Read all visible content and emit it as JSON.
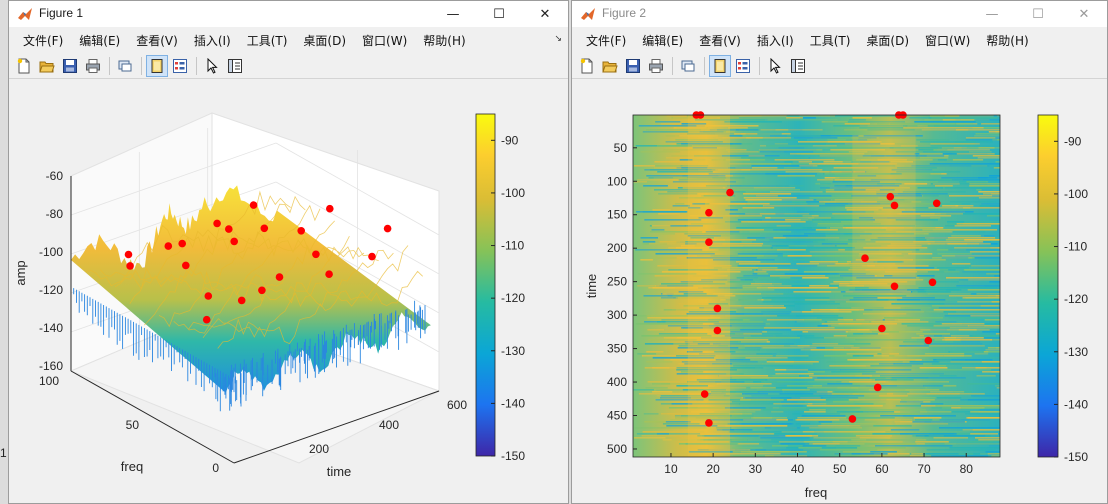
{
  "desktop": {
    "stray_char": "1"
  },
  "figure1": {
    "title": "Figure 1",
    "menu": [
      "文件(F)",
      "编辑(E)",
      "查看(V)",
      "插入(I)",
      "工具(T)",
      "桌面(D)",
      "窗口(W)",
      "帮助(H)"
    ],
    "toolbar_icons": [
      "new-file-icon",
      "open-folder-icon",
      "save-icon",
      "print-icon",
      "link-icon",
      "plot-layout-icon",
      "property-editor-icon",
      "pointer-icon",
      "panel-icon"
    ],
    "controls": {
      "minimize": "—",
      "maximize": "☐",
      "close": "✕"
    },
    "menu_arrow": "↘"
  },
  "figure2": {
    "title": "Figure 2",
    "menu": [
      "文件(F)",
      "编辑(E)",
      "查看(V)",
      "插入(I)",
      "工具(T)",
      "桌面(D)",
      "窗口(W)",
      "帮助(H)"
    ],
    "toolbar_icons": [
      "new-file-icon",
      "open-folder-icon",
      "save-icon",
      "print-icon",
      "link-icon",
      "plot-layout-icon",
      "property-editor-icon",
      "pointer-icon",
      "panel-icon"
    ],
    "controls": {
      "minimize": "—",
      "maximize": "☐",
      "close": "✕"
    }
  },
  "chart_data": [
    {
      "type": "surface3d",
      "xlabel": "freq",
      "ylabel": "time",
      "zlabel": "amp",
      "x_ticks": [
        "0",
        "50",
        "100"
      ],
      "y_ticks": [
        "200",
        "400",
        "600"
      ],
      "z_ticks": [
        "-60",
        "-80",
        "-100",
        "-120",
        "-140",
        "-160"
      ],
      "xlim": [
        0,
        100
      ],
      "ylim": [
        0,
        600
      ],
      "zlim": [
        -160,
        -60
      ],
      "grid": true,
      "colorbar": {
        "ticks": [
          "-90",
          "-100",
          "-110",
          "-120",
          "-130",
          "-140",
          "-150"
        ],
        "range": [
          -150,
          -85
        ],
        "colormap": "parula"
      },
      "markers_color": "#ff0000"
    },
    {
      "type": "heatmap",
      "xlabel": "freq",
      "ylabel": "time",
      "x_ticks": [
        "10",
        "20",
        "30",
        "40",
        "50",
        "60",
        "70",
        "80"
      ],
      "y_ticks": [
        "50",
        "100",
        "150",
        "200",
        "250",
        "300",
        "350",
        "400",
        "450",
        "500"
      ],
      "xlim": [
        1,
        88
      ],
      "ylim": [
        1,
        512
      ],
      "colorbar": {
        "ticks": [
          "-90",
          "-100",
          "-110",
          "-120",
          "-130",
          "-140",
          "-150"
        ],
        "range": [
          -150,
          -85
        ],
        "colormap": "parula"
      },
      "points": [
        {
          "freq": 16,
          "time": 1
        },
        {
          "freq": 17,
          "time": 1
        },
        {
          "freq": 64,
          "time": 1
        },
        {
          "freq": 65,
          "time": 1
        },
        {
          "freq": 24,
          "time": 117
        },
        {
          "freq": 19,
          "time": 147
        },
        {
          "freq": 62,
          "time": 123
        },
        {
          "freq": 63,
          "time": 136
        },
        {
          "freq": 73,
          "time": 133
        },
        {
          "freq": 19,
          "time": 191
        },
        {
          "freq": 56,
          "time": 215
        },
        {
          "freq": 63,
          "time": 257
        },
        {
          "freq": 72,
          "time": 251
        },
        {
          "freq": 21,
          "time": 290
        },
        {
          "freq": 21,
          "time": 323
        },
        {
          "freq": 60,
          "time": 320
        },
        {
          "freq": 71,
          "time": 338
        },
        {
          "freq": 59,
          "time": 408
        },
        {
          "freq": 18,
          "time": 418
        },
        {
          "freq": 53,
          "time": 455
        },
        {
          "freq": 19,
          "time": 461
        }
      ],
      "markers_color": "#ff0000"
    }
  ]
}
